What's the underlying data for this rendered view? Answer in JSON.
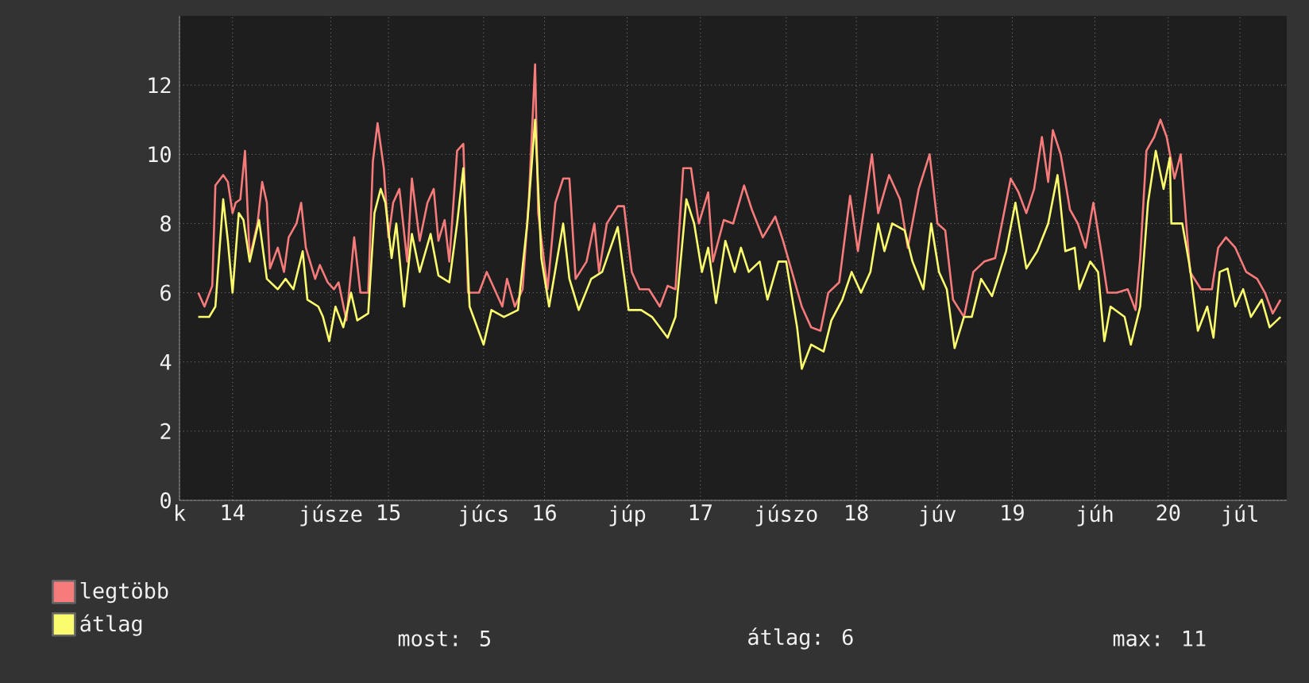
{
  "chart_data": {
    "type": "line",
    "xlim": [
      13.66,
      20.76
    ],
    "ylim": [
      0,
      14
    ],
    "xticks": [
      {
        "value": 13.66,
        "label": "k"
      },
      14,
      {
        "value": 14.63,
        "label": "júsze"
      },
      15,
      {
        "value": 15.61,
        "label": "júcs"
      },
      16,
      {
        "value": 16.53,
        "label": "júp"
      },
      17,
      {
        "value": 17.55,
        "label": "júszo"
      },
      18,
      {
        "value": 18.52,
        "label": "júv"
      },
      19,
      {
        "value": 19.53,
        "label": "júh"
      },
      20,
      {
        "value": 20.46,
        "label": "júl"
      }
    ],
    "yticks": [
      0,
      2,
      4,
      6,
      8,
      10,
      12
    ],
    "grid": true,
    "legend": "bottom left",
    "annotations": [
      "most: 5",
      "átlag: 6",
      "max: 11"
    ],
    "series": [
      {
        "name": "legtöbb",
        "color": "#f77b7b",
        "x": [
          13.78,
          13.82,
          13.87,
          13.89,
          13.94,
          13.97,
          14.0,
          14.02,
          14.05,
          14.08,
          14.11,
          14.16,
          14.19,
          14.22,
          14.24,
          14.29,
          14.33,
          14.36,
          14.41,
          14.44,
          14.47,
          14.53,
          14.56,
          14.61,
          14.65,
          14.68,
          14.73,
          14.78,
          14.82,
          14.87,
          14.9,
          14.93,
          14.97,
          15.0,
          15.03,
          15.07,
          15.12,
          15.15,
          15.2,
          15.25,
          15.29,
          15.32,
          15.36,
          15.39,
          15.44,
          15.48,
          15.51,
          15.58,
          15.63,
          15.68,
          15.73,
          15.76,
          15.81,
          15.86,
          15.9,
          15.94,
          15.96,
          16.02,
          16.07,
          16.12,
          16.16,
          16.2,
          16.27,
          16.32,
          16.35,
          16.4,
          16.47,
          16.51,
          16.56,
          16.61,
          16.67,
          16.74,
          16.79,
          16.84,
          16.89,
          16.94,
          16.99,
          17.05,
          17.08,
          17.15,
          17.21,
          17.28,
          17.33,
          17.4,
          17.48,
          17.53,
          17.6,
          17.65,
          17.71,
          17.77,
          17.82,
          17.89,
          17.96,
          18.01,
          18.1,
          18.14,
          18.21,
          18.28,
          18.33,
          18.4,
          18.47,
          18.52,
          18.57,
          18.62,
          18.69,
          18.75,
          18.82,
          18.89,
          18.99,
          19.04,
          19.09,
          19.14,
          19.19,
          19.23,
          19.26,
          19.31,
          19.37,
          19.42,
          19.47,
          19.52,
          19.57,
          19.61,
          19.67,
          19.74,
          19.79,
          19.82,
          19.86,
          19.91,
          19.95,
          19.99,
          20.04,
          20.08,
          20.11,
          20.14,
          20.21,
          20.28,
          20.32,
          20.37,
          20.43,
          20.5,
          20.57,
          20.62,
          20.67,
          20.72
        ],
        "values": [
          6.0,
          5.6,
          6.2,
          9.1,
          9.4,
          9.2,
          8.3,
          8.6,
          8.7,
          10.1,
          7.0,
          8.0,
          9.2,
          8.6,
          6.7,
          7.3,
          6.6,
          7.6,
          8.0,
          8.6,
          7.3,
          6.4,
          6.8,
          6.3,
          6.1,
          6.3,
          5.2,
          7.6,
          6.0,
          6.0,
          9.8,
          10.9,
          9.6,
          7.6,
          8.6,
          9.0,
          6.9,
          9.3,
          7.5,
          8.6,
          9.0,
          7.5,
          8.1,
          6.9,
          10.1,
          10.3,
          6.0,
          6.0,
          6.6,
          6.1,
          5.6,
          6.4,
          5.6,
          6.1,
          8.7,
          12.6,
          8.3,
          6.1,
          8.6,
          9.3,
          9.3,
          6.4,
          6.9,
          8.0,
          6.6,
          8.0,
          8.5,
          8.5,
          6.6,
          6.1,
          6.1,
          5.6,
          6.2,
          6.1,
          9.6,
          9.6,
          8.0,
          8.9,
          6.9,
          8.1,
          8.0,
          9.1,
          8.4,
          7.6,
          8.2,
          7.5,
          6.4,
          5.6,
          5.0,
          4.9,
          6.0,
          6.3,
          8.8,
          7.2,
          10.0,
          8.3,
          9.4,
          8.7,
          7.3,
          9.0,
          10.0,
          8.0,
          7.8,
          5.8,
          5.3,
          6.6,
          6.9,
          7.0,
          9.3,
          8.9,
          8.3,
          9.0,
          10.5,
          9.2,
          10.7,
          10.0,
          8.4,
          8.0,
          7.3,
          8.6,
          7.2,
          6.0,
          6.0,
          6.1,
          5.5,
          7.0,
          10.1,
          10.5,
          11.0,
          10.5,
          9.3,
          10.0,
          8.3,
          6.6,
          6.1,
          6.1,
          7.3,
          7.6,
          7.3,
          6.6,
          6.4,
          6.0,
          5.4,
          5.8
        ]
      },
      {
        "name": "átlag",
        "color": "#fbfb6e",
        "x": [
          13.78,
          13.85,
          13.89,
          13.94,
          13.97,
          14.0,
          14.04,
          14.07,
          14.11,
          14.17,
          14.22,
          14.29,
          14.34,
          14.39,
          14.45,
          14.48,
          14.55,
          14.58,
          14.62,
          14.66,
          14.71,
          14.76,
          14.8,
          14.87,
          14.91,
          14.95,
          14.98,
          15.02,
          15.05,
          15.1,
          15.15,
          15.2,
          15.27,
          15.32,
          15.39,
          15.44,
          15.48,
          15.52,
          15.61,
          15.66,
          15.74,
          15.83,
          15.89,
          15.94,
          15.98,
          16.03,
          16.12,
          16.16,
          16.22,
          16.3,
          16.37,
          16.47,
          16.54,
          16.62,
          16.69,
          16.79,
          16.84,
          16.91,
          16.96,
          17.01,
          17.05,
          17.1,
          17.16,
          17.22,
          17.26,
          17.31,
          17.38,
          17.43,
          17.5,
          17.55,
          17.62,
          17.65,
          17.71,
          17.79,
          17.84,
          17.91,
          17.97,
          18.03,
          18.09,
          18.14,
          18.18,
          18.23,
          18.31,
          18.36,
          18.43,
          18.48,
          18.53,
          18.58,
          18.63,
          18.69,
          18.74,
          18.8,
          18.87,
          18.96,
          19.02,
          19.09,
          19.16,
          19.23,
          19.29,
          19.34,
          19.4,
          19.43,
          19.5,
          19.55,
          19.59,
          19.63,
          19.72,
          19.76,
          19.82,
          19.87,
          19.92,
          19.97,
          20.01,
          20.02,
          20.09,
          20.14,
          20.19,
          20.25,
          20.29,
          20.33,
          20.38,
          20.43,
          20.48,
          20.53,
          20.6,
          20.65,
          20.72
        ],
        "values": [
          5.3,
          5.3,
          5.6,
          8.7,
          7.5,
          6.0,
          8.3,
          8.1,
          6.9,
          8.1,
          6.4,
          6.1,
          6.4,
          6.1,
          7.2,
          5.8,
          5.6,
          5.3,
          4.6,
          5.6,
          5.0,
          6.0,
          5.2,
          5.4,
          8.3,
          9.0,
          8.6,
          7.0,
          8.0,
          5.6,
          7.7,
          6.6,
          7.7,
          6.5,
          6.3,
          8.0,
          9.6,
          5.6,
          4.5,
          5.5,
          5.3,
          5.5,
          8.0,
          11.0,
          7.0,
          5.6,
          8.0,
          6.4,
          5.5,
          6.4,
          6.6,
          7.9,
          5.5,
          5.5,
          5.3,
          4.7,
          5.3,
          8.7,
          8.0,
          6.6,
          7.3,
          5.7,
          7.5,
          6.6,
          7.3,
          6.6,
          6.9,
          5.8,
          6.9,
          6.9,
          5.0,
          3.8,
          4.5,
          4.3,
          5.2,
          5.8,
          6.6,
          6.0,
          6.6,
          8.0,
          7.2,
          8.0,
          7.8,
          6.9,
          6.1,
          8.0,
          6.6,
          6.1,
          4.4,
          5.3,
          5.3,
          6.4,
          5.9,
          7.2,
          8.6,
          6.7,
          7.2,
          8.0,
          9.4,
          7.2,
          7.3,
          6.1,
          6.9,
          6.6,
          4.6,
          5.6,
          5.3,
          4.5,
          5.6,
          8.6,
          10.1,
          9.0,
          9.9,
          8.0,
          8.0,
          6.7,
          4.9,
          5.6,
          4.7,
          6.6,
          6.7,
          5.6,
          6.1,
          5.3,
          5.8,
          5.0,
          5.3
        ]
      }
    ]
  }
}
